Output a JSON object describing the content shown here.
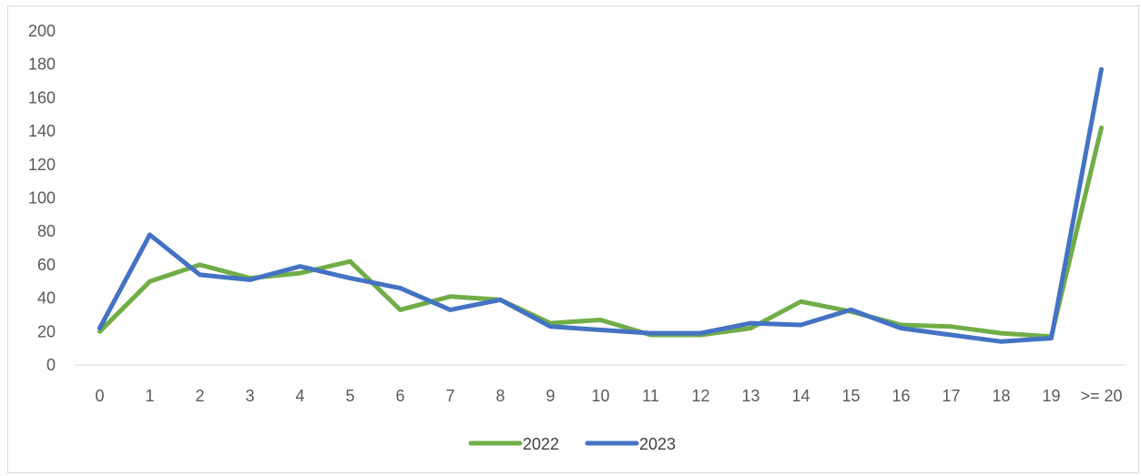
{
  "chart_data": {
    "type": "line",
    "title": "",
    "xlabel": "",
    "ylabel": "",
    "categories": [
      "0",
      "1",
      "2",
      "3",
      "4",
      "5",
      "6",
      "7",
      "8",
      "9",
      "10",
      "11",
      "12",
      "13",
      "14",
      "15",
      "16",
      "17",
      "18",
      "19",
      ">= 20"
    ],
    "y_ticks": [
      "0",
      "20",
      "40",
      "60",
      "80",
      "100",
      "120",
      "140",
      "160",
      "180",
      "200"
    ],
    "ylim": [
      0,
      200
    ],
    "grid": false,
    "legend_position": "bottom",
    "series": [
      {
        "name": "2022",
        "color": "#70ad47",
        "values": [
          20,
          50,
          60,
          52,
          55,
          62,
          33,
          41,
          39,
          25,
          27,
          18,
          18,
          22,
          38,
          32,
          24,
          23,
          19,
          17,
          142
        ]
      },
      {
        "name": "2023",
        "color": "#4472c4",
        "values": [
          22,
          78,
          54,
          51,
          59,
          52,
          46,
          33,
          39,
          23,
          21,
          19,
          19,
          25,
          24,
          33,
          22,
          18,
          14,
          16,
          177
        ]
      }
    ]
  }
}
